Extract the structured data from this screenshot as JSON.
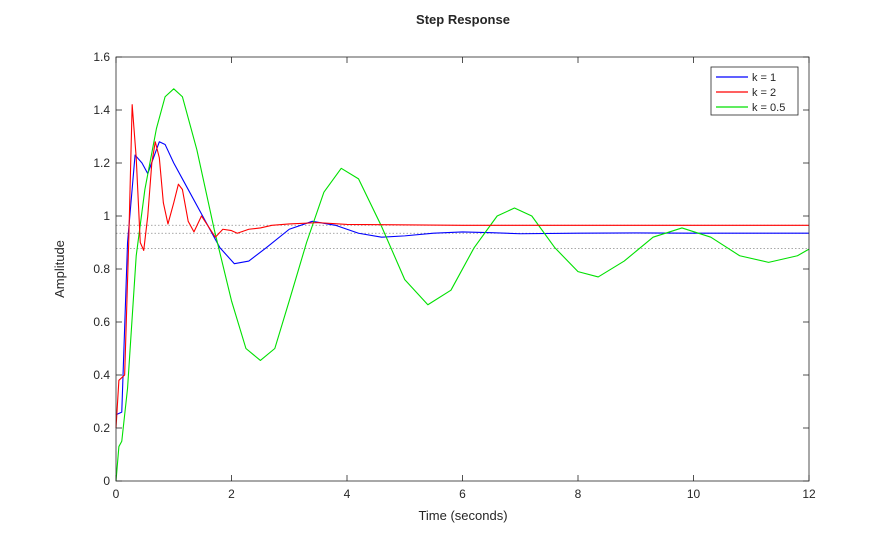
{
  "chart_data": {
    "type": "line",
    "title": "Step Response",
    "xlabel": "Time (seconds)",
    "ylabel": "Amplitude",
    "xlim": [
      0,
      12
    ],
    "ylim": [
      0,
      1.6
    ],
    "x_ticks": [
      "0",
      "2",
      "4",
      "6",
      "8",
      "10",
      "12"
    ],
    "y_ticks": [
      "0",
      "0.2",
      "0.4",
      "0.6",
      "0.8",
      "1",
      "1.2",
      "1.4",
      "1.6"
    ],
    "grid": false,
    "legend_position": "top-right",
    "series": [
      {
        "name": "k = 1",
        "color": "#0000ff",
        "final_value": 0.935,
        "points": [
          [
            0,
            0.25
          ],
          [
            0.1,
            0.26
          ],
          [
            0.2,
            0.9
          ],
          [
            0.33,
            1.23
          ],
          [
            0.45,
            1.2
          ],
          [
            0.55,
            1.16
          ],
          [
            0.65,
            1.22
          ],
          [
            0.75,
            1.28
          ],
          [
            0.85,
            1.27
          ],
          [
            1.0,
            1.2
          ],
          [
            1.2,
            1.12
          ],
          [
            1.5,
            1.0
          ],
          [
            1.8,
            0.88
          ],
          [
            2.05,
            0.82
          ],
          [
            2.3,
            0.83
          ],
          [
            2.6,
            0.88
          ],
          [
            3.0,
            0.95
          ],
          [
            3.4,
            0.98
          ],
          [
            3.8,
            0.965
          ],
          [
            4.2,
            0.935
          ],
          [
            4.6,
            0.92
          ],
          [
            5.0,
            0.925
          ],
          [
            5.5,
            0.935
          ],
          [
            6.0,
            0.94
          ],
          [
            6.5,
            0.937
          ],
          [
            7.0,
            0.933
          ],
          [
            8.0,
            0.935
          ],
          [
            9.0,
            0.936
          ],
          [
            10.0,
            0.935
          ],
          [
            12.0,
            0.935
          ]
        ]
      },
      {
        "name": "k = 2",
        "color": "#ff0000",
        "final_value": 0.965,
        "points": [
          [
            0,
            0.2
          ],
          [
            0.05,
            0.38
          ],
          [
            0.15,
            0.4
          ],
          [
            0.22,
            0.9
          ],
          [
            0.28,
            1.42
          ],
          [
            0.35,
            1.22
          ],
          [
            0.42,
            0.9
          ],
          [
            0.48,
            0.87
          ],
          [
            0.55,
            1.0
          ],
          [
            0.62,
            1.2
          ],
          [
            0.68,
            1.28
          ],
          [
            0.75,
            1.22
          ],
          [
            0.82,
            1.05
          ],
          [
            0.9,
            0.97
          ],
          [
            1.0,
            1.05
          ],
          [
            1.08,
            1.12
          ],
          [
            1.15,
            1.1
          ],
          [
            1.25,
            0.98
          ],
          [
            1.35,
            0.94
          ],
          [
            1.48,
            1.0
          ],
          [
            1.6,
            0.96
          ],
          [
            1.72,
            0.92
          ],
          [
            1.85,
            0.95
          ],
          [
            2.0,
            0.945
          ],
          [
            2.1,
            0.935
          ],
          [
            2.3,
            0.95
          ],
          [
            2.5,
            0.955
          ],
          [
            2.7,
            0.965
          ],
          [
            3.0,
            0.97
          ],
          [
            3.5,
            0.975
          ],
          [
            4.0,
            0.968
          ],
          [
            6.0,
            0.965
          ],
          [
            12.0,
            0.965
          ]
        ]
      },
      {
        "name": "k = 0.5",
        "color": "#00e000",
        "final_value": 0.877,
        "points": [
          [
            0,
            0.0
          ],
          [
            0.05,
            0.13
          ],
          [
            0.1,
            0.15
          ],
          [
            0.2,
            0.35
          ],
          [
            0.35,
            0.85
          ],
          [
            0.5,
            1.1
          ],
          [
            0.7,
            1.33
          ],
          [
            0.85,
            1.45
          ],
          [
            1.0,
            1.48
          ],
          [
            1.15,
            1.45
          ],
          [
            1.4,
            1.25
          ],
          [
            1.7,
            0.95
          ],
          [
            2.0,
            0.68
          ],
          [
            2.25,
            0.5
          ],
          [
            2.5,
            0.455
          ],
          [
            2.75,
            0.5
          ],
          [
            3.0,
            0.68
          ],
          [
            3.3,
            0.9
          ],
          [
            3.6,
            1.09
          ],
          [
            3.9,
            1.18
          ],
          [
            4.2,
            1.14
          ],
          [
            4.6,
            0.96
          ],
          [
            5.0,
            0.76
          ],
          [
            5.4,
            0.665
          ],
          [
            5.8,
            0.72
          ],
          [
            6.2,
            0.88
          ],
          [
            6.6,
            1.0
          ],
          [
            6.9,
            1.03
          ],
          [
            7.2,
            1.0
          ],
          [
            7.6,
            0.88
          ],
          [
            8.0,
            0.79
          ],
          [
            8.35,
            0.77
          ],
          [
            8.8,
            0.83
          ],
          [
            9.3,
            0.92
          ],
          [
            9.8,
            0.955
          ],
          [
            10.3,
            0.92
          ],
          [
            10.8,
            0.85
          ],
          [
            11.3,
            0.825
          ],
          [
            11.8,
            0.85
          ],
          [
            12.0,
            0.875
          ]
        ]
      }
    ]
  }
}
